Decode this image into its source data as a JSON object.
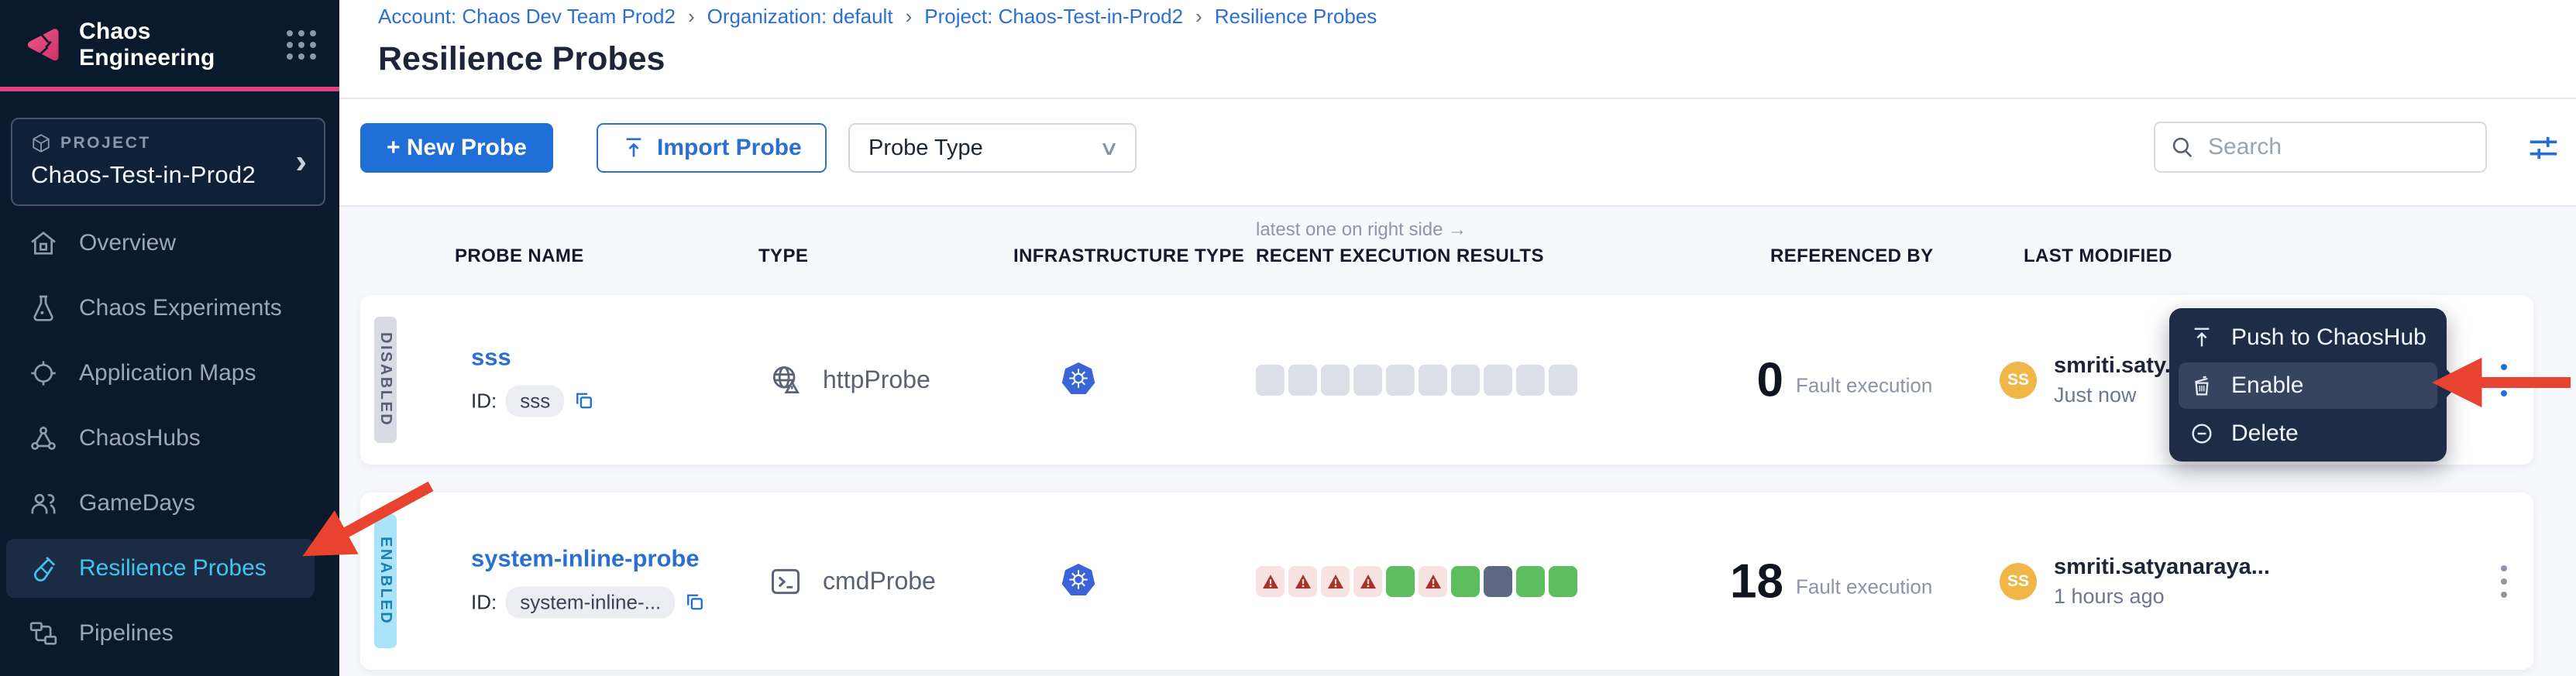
{
  "sidebar": {
    "app_title": "Chaos Engineering",
    "project": {
      "label": "PROJECT",
      "name": "Chaos-Test-in-Prod2"
    },
    "items": [
      {
        "label": "Overview",
        "active": false
      },
      {
        "label": "Chaos Experiments",
        "active": false
      },
      {
        "label": "Application Maps",
        "active": false
      },
      {
        "label": "ChaosHubs",
        "active": false
      },
      {
        "label": "GameDays",
        "active": false
      },
      {
        "label": "Resilience Probes",
        "active": true
      },
      {
        "label": "Pipelines",
        "active": false
      }
    ]
  },
  "breadcrumb": {
    "separator": "›",
    "items": [
      "Account: Chaos Dev Team Prod2",
      "Organization: default",
      "Project: Chaos-Test-in-Prod2",
      "Resilience Probes"
    ]
  },
  "page": {
    "title": "Resilience Probes"
  },
  "toolbar": {
    "new_probe_label": "+ New Probe",
    "import_probe_label": "Import Probe",
    "probe_type_label": "Probe Type",
    "search_placeholder": "Search"
  },
  "table": {
    "hint": "latest one on right side →",
    "headers": {
      "probe_name": "PROBE NAME",
      "type": "TYPE",
      "infrastructure_type": "INFRASTRUCTURE TYPE",
      "recent_execution_results": "RECENT EXECUTION RESULTS",
      "referenced_by": "REFERENCED BY",
      "last_modified": "LAST MODIFIED"
    },
    "rows": [
      {
        "status_tag": "DISABLED",
        "name": "sss",
        "id_label": "ID:",
        "id": "sss",
        "type": "httpProbe",
        "type_icon": "globe-warning-icon",
        "infra_icon": "kubernetes-icon",
        "executions": [
          "empty",
          "empty",
          "empty",
          "empty",
          "empty",
          "empty",
          "empty",
          "empty",
          "empty",
          "empty"
        ],
        "fault_count": "0",
        "fault_label": "Fault execution",
        "avatar_initials": "SS",
        "user": "smriti.saty...",
        "time": "Just now"
      },
      {
        "status_tag": "ENABLED",
        "name": "system-inline-probe",
        "id_label": "ID:",
        "id": "system-inline-...",
        "type": "cmdProbe",
        "type_icon": "terminal-icon",
        "infra_icon": "kubernetes-icon",
        "executions": [
          "failed",
          "failed",
          "failed",
          "failed",
          "passed",
          "failed",
          "passed",
          "na",
          "passed",
          "passed"
        ],
        "fault_count": "18",
        "fault_label": "Fault execution",
        "avatar_initials": "SS",
        "user": "smriti.satyanaraya...",
        "time": "1 hours ago"
      }
    ]
  },
  "context_menu": {
    "items": [
      {
        "label": "Push to ChaosHub",
        "icon": "push-to-hub-icon",
        "highlighted": false
      },
      {
        "label": "Enable",
        "icon": "trash-icon",
        "highlighted": true
      },
      {
        "label": "Delete",
        "icon": "minus-circle-icon",
        "highlighted": false
      }
    ]
  },
  "colors": {
    "brand_pink": "#e0447c",
    "accent_blue": "#1f6fd6",
    "sidebar_bg": "#0a1a2c",
    "active_link": "#41c4f1",
    "success_green": "#5cbe5f",
    "error_red": "#a93226",
    "na_slate": "#5f6883",
    "enabled_tag_bg": "#a9e4fa",
    "disabled_tag_bg": "#d8dae4",
    "annotation_arrow_red": "#e8432e",
    "avatar_orange": "#f0b647",
    "kubernetes_blue": "#3a64d8"
  }
}
